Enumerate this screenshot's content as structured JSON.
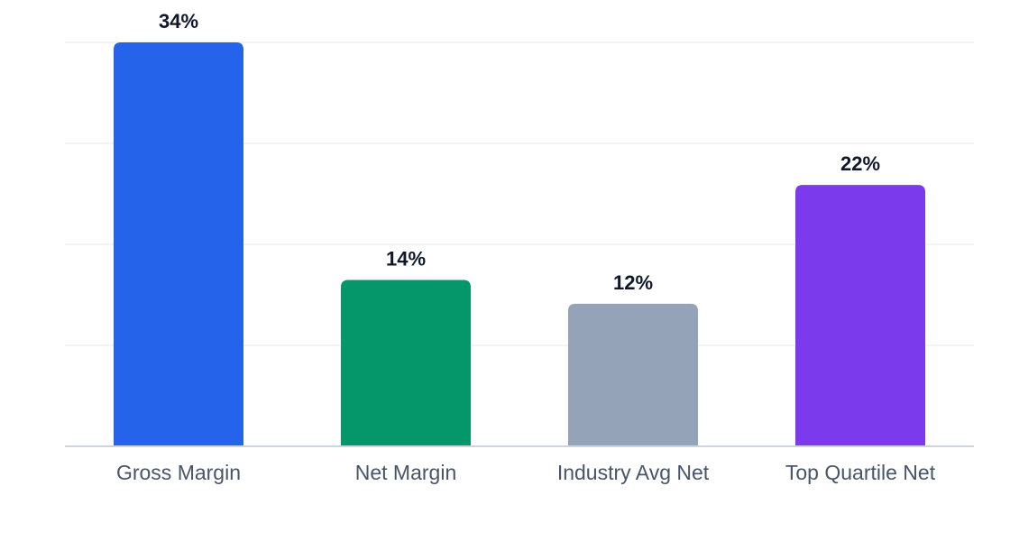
{
  "chart_data": {
    "type": "bar",
    "categories": [
      "Gross Margin",
      "Net Margin",
      "Industry Avg Net",
      "Top Quartile Net"
    ],
    "values": [
      34,
      14,
      12,
      22
    ],
    "value_labels": [
      "34%",
      "14%",
      "12%",
      "22%"
    ],
    "colors": [
      "#2563eb",
      "#059669",
      "#94a3b8",
      "#7c3aed"
    ],
    "ylim": [
      0,
      34
    ],
    "grid": true,
    "legend": "none"
  }
}
